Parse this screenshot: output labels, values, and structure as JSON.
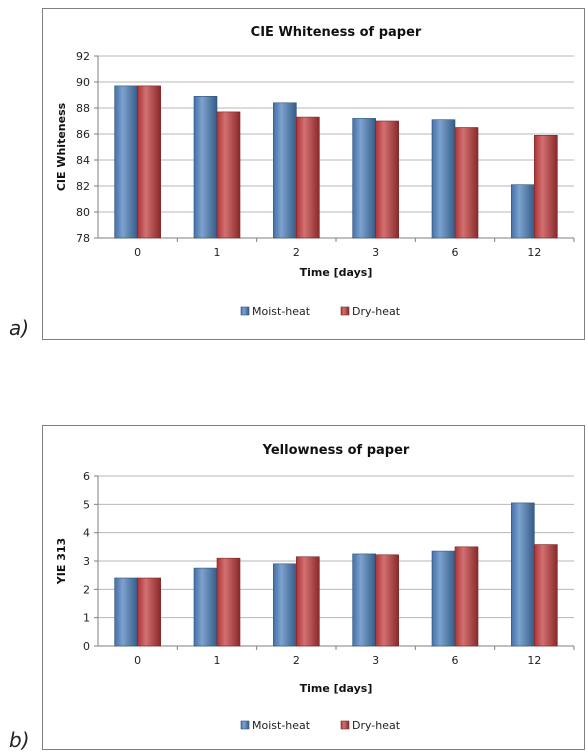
{
  "panels": [
    {
      "label": "a)"
    },
    {
      "label": "b)"
    }
  ],
  "colors": {
    "moist": "#4a7ebb",
    "dry": "#c0393b"
  },
  "chart_data": [
    {
      "type": "bar",
      "title": "CIE Whiteness of paper",
      "xlabel": "Time [days]",
      "ylabel": "CIE Whiteness",
      "categories": [
        "0",
        "1",
        "2",
        "3",
        "6",
        "12"
      ],
      "ylim": [
        78,
        92
      ],
      "yticks": [
        "78",
        "80",
        "82",
        "84",
        "86",
        "88",
        "90",
        "92"
      ],
      "grid": true,
      "legend": "bottom",
      "series": [
        {
          "name": "Moist-heat",
          "values": [
            89.7,
            88.9,
            88.4,
            87.2,
            87.1,
            82.1
          ]
        },
        {
          "name": "Dry-heat",
          "values": [
            89.7,
            87.7,
            87.3,
            87.0,
            86.5,
            85.9
          ]
        }
      ]
    },
    {
      "type": "bar",
      "title": "Yellowness of paper",
      "xlabel": "Time [days]",
      "ylabel": "YIE 313",
      "categories": [
        "0",
        "1",
        "2",
        "3",
        "6",
        "12"
      ],
      "ylim": [
        0,
        6
      ],
      "yticks": [
        "0",
        "1",
        "2",
        "3",
        "4",
        "5",
        "6"
      ],
      "grid": true,
      "legend": "bottom",
      "series": [
        {
          "name": "Moist-heat",
          "values": [
            2.4,
            2.75,
            2.9,
            3.25,
            3.35,
            5.05
          ]
        },
        {
          "name": "Dry-heat",
          "values": [
            2.4,
            3.1,
            3.15,
            3.22,
            3.5,
            3.58
          ]
        }
      ]
    }
  ]
}
